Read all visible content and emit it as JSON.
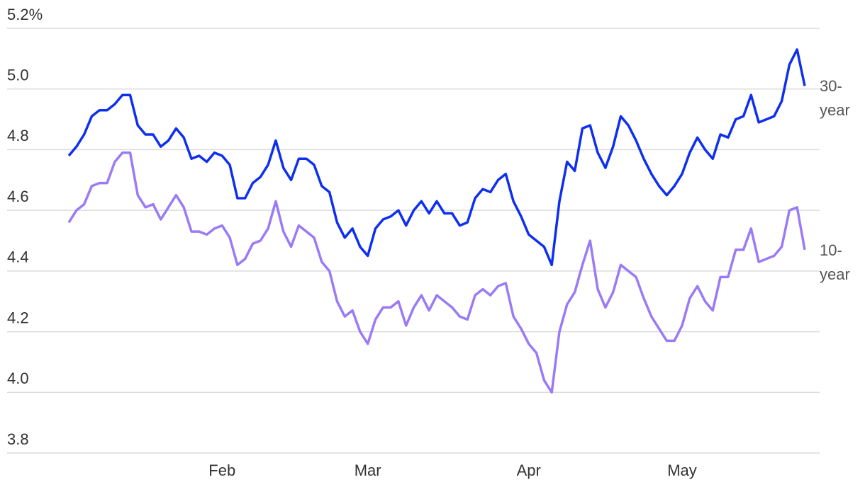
{
  "chart_data": {
    "type": "line",
    "categories": [
      null,
      null,
      null,
      null,
      null,
      null,
      null,
      null,
      null,
      null,
      null,
      null,
      null,
      null,
      null,
      null,
      null,
      null,
      null,
      null,
      "Feb",
      null,
      null,
      null,
      null,
      null,
      null,
      null,
      null,
      null,
      null,
      null,
      null,
      null,
      null,
      null,
      null,
      null,
      null,
      "Mar",
      null,
      null,
      null,
      null,
      null,
      null,
      null,
      null,
      null,
      null,
      null,
      null,
      null,
      null,
      null,
      null,
      null,
      null,
      null,
      null,
      "Apr",
      null,
      null,
      null,
      null,
      null,
      null,
      null,
      null,
      null,
      null,
      null,
      null,
      null,
      null,
      null,
      null,
      null,
      null,
      null,
      "May",
      null,
      null,
      null,
      null,
      null,
      null,
      null,
      null,
      null,
      null,
      null,
      null,
      null,
      null,
      null,
      null
    ],
    "series": [
      {
        "name": "30-year",
        "color": "#0f2ff0",
        "values": [
          4.78,
          4.81,
          4.85,
          4.91,
          4.93,
          4.93,
          4.95,
          4.98,
          4.98,
          4.88,
          4.85,
          4.85,
          4.81,
          4.83,
          4.87,
          4.84,
          4.77,
          4.78,
          4.76,
          4.79,
          4.78,
          4.75,
          4.64,
          4.64,
          4.69,
          4.71,
          4.75,
          4.83,
          4.74,
          4.7,
          4.77,
          4.77,
          4.75,
          4.68,
          4.66,
          4.56,
          4.51,
          4.54,
          4.48,
          4.45,
          4.54,
          4.57,
          4.58,
          4.6,
          4.55,
          4.6,
          4.63,
          4.59,
          4.63,
          4.59,
          4.59,
          4.55,
          4.56,
          4.64,
          4.67,
          4.66,
          4.7,
          4.72,
          4.63,
          4.58,
          4.52,
          4.5,
          4.48,
          4.42,
          4.63,
          4.76,
          4.73,
          4.87,
          4.88,
          4.79,
          4.74,
          4.81,
          4.91,
          4.88,
          4.83,
          4.77,
          4.72,
          4.68,
          4.65,
          4.68,
          4.72,
          4.79,
          4.84,
          4.8,
          4.77,
          4.85,
          4.84,
          4.9,
          4.91,
          4.98,
          4.89,
          4.9,
          4.91,
          4.96,
          5.08,
          5.13,
          5.01
        ]
      },
      {
        "name": "10-year",
        "color": "#9a7bf6",
        "values": [
          4.56,
          4.6,
          4.62,
          4.68,
          4.69,
          4.69,
          4.76,
          4.79,
          4.79,
          4.65,
          4.61,
          4.62,
          4.57,
          4.61,
          4.65,
          4.61,
          4.53,
          4.53,
          4.52,
          4.54,
          4.55,
          4.51,
          4.42,
          4.44,
          4.49,
          4.5,
          4.54,
          4.63,
          4.53,
          4.48,
          4.55,
          4.53,
          4.51,
          4.43,
          4.4,
          4.3,
          4.25,
          4.27,
          4.2,
          4.16,
          4.24,
          4.28,
          4.28,
          4.3,
          4.22,
          4.28,
          4.32,
          4.27,
          4.32,
          4.3,
          4.28,
          4.25,
          4.24,
          4.32,
          4.34,
          4.32,
          4.35,
          4.36,
          4.25,
          4.21,
          4.16,
          4.13,
          4.04,
          4.0,
          4.2,
          4.29,
          4.33,
          4.42,
          4.5,
          4.34,
          4.28,
          4.33,
          4.42,
          4.4,
          4.38,
          4.31,
          4.25,
          4.21,
          4.17,
          4.17,
          4.22,
          4.31,
          4.35,
          4.3,
          4.27,
          4.38,
          4.38,
          4.47,
          4.47,
          4.54,
          4.43,
          4.44,
          4.45,
          4.48,
          4.6,
          4.61,
          4.47
        ]
      }
    ],
    "ylim": [
      3.8,
      5.2
    ],
    "yticks": [
      {
        "value": 5.2,
        "label": "5.2%"
      },
      {
        "value": 5,
        "label": "5.0"
      },
      4.8,
      4.6,
      4.4,
      4.2,
      {
        "value": 4,
        "label": "4.0"
      },
      3.8
    ],
    "grid": true
  }
}
